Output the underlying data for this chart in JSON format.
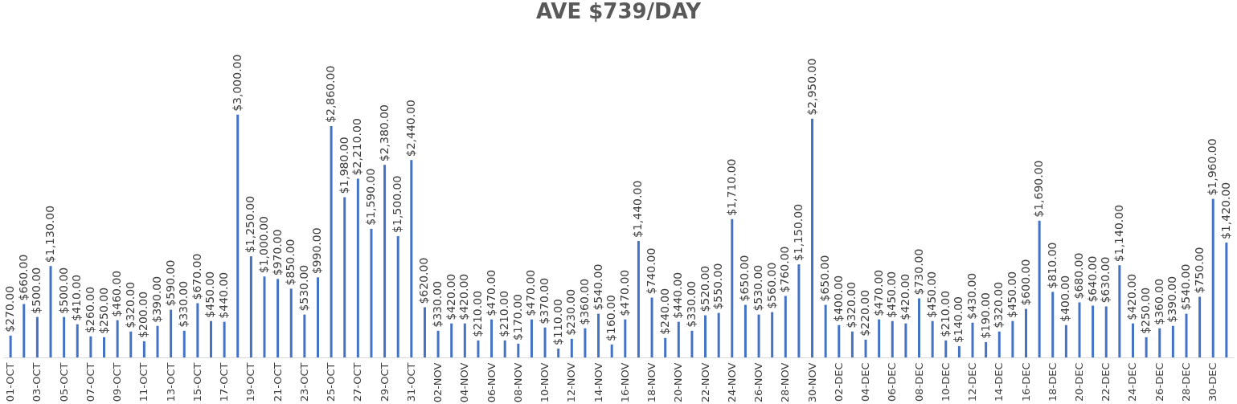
{
  "chart_data": {
    "type": "bar",
    "title": "AVE $739/DAY",
    "color": "#4472c4",
    "categories": [
      "01-OCT",
      null,
      "03-OCT",
      null,
      "05-OCT",
      null,
      "07-OCT",
      null,
      "09-OCT",
      null,
      "11-OCT",
      null,
      "13-OCT",
      null,
      "15-OCT",
      null,
      "17-OCT",
      null,
      "19-OCT",
      null,
      "21-OCT",
      null,
      "23-OCT",
      null,
      "25-OCT",
      null,
      "27-OCT",
      null,
      "29-OCT",
      null,
      "31-OCT",
      null,
      "02-NOV",
      null,
      "04-NOV",
      null,
      "06-NOV",
      null,
      "08-NOV",
      null,
      "10-NOV",
      null,
      "12-NOV",
      null,
      "14-NOV",
      null,
      "16-NOV",
      null,
      "18-NOV",
      null,
      "20-NOV",
      null,
      "22-NOV",
      null,
      "24-NOV",
      null,
      "26-NOV",
      null,
      "28-NOV",
      null,
      "30-NOV",
      null,
      "02-DEC",
      null,
      "04-DEC",
      null,
      "06-DEC",
      null,
      "08-DEC",
      null,
      "10-DEC",
      null,
      "12-DEC",
      null,
      "14-DEC",
      null,
      "16-DEC",
      null,
      "18-DEC",
      null,
      "20-DEC",
      null,
      "22-DEC",
      null,
      "24-DEC",
      null,
      "26-DEC",
      null,
      "28-DEC",
      null,
      "30-DEC",
      null
    ],
    "values": [
      270,
      660,
      500,
      1130,
      500,
      410,
      260,
      250,
      460,
      320,
      200,
      390,
      590,
      330,
      670,
      450,
      440,
      3000,
      1250,
      1000,
      970,
      850,
      530,
      990,
      2860,
      1980,
      2210,
      1590,
      2380,
      1500,
      2440,
      620,
      330,
      420,
      420,
      210,
      470,
      210,
      170,
      470,
      370,
      110,
      230,
      360,
      540,
      160,
      470,
      1440,
      740,
      240,
      440,
      330,
      520,
      550,
      1710,
      650,
      530,
      560,
      760,
      1150,
      2950,
      650,
      400,
      320,
      220,
      470,
      450,
      420,
      730,
      450,
      210,
      140,
      430,
      190,
      320,
      450,
      600,
      1690,
      810,
      400,
      680,
      640,
      630,
      1140,
      420,
      250,
      360,
      390,
      540,
      750,
      1960,
      1420
    ],
    "value_labels": [
      "$270.00",
      "$660.00",
      "$500.00",
      "$1,130.00",
      "$500.00",
      "$410.00",
      "$260.00",
      "$250.00",
      "$460.00",
      "$320.00",
      "$200.00",
      "$390.00",
      "$590.00",
      "$330.00",
      "$670.00",
      "$450.00",
      "$440.00",
      "$3,000.00",
      "$1,250.00",
      "$1,000.00",
      "$970.00",
      "$850.00",
      "$530.00",
      "$990.00",
      "$2,860.00",
      "$1,980.00",
      "$2,210.00",
      "$1,590.00",
      "$2,380.00",
      "$1,500.00",
      "$2,440.00",
      "$620.00",
      "$330.00",
      "$420.00",
      "$420.00",
      "$210.00",
      "$470.00",
      "$210.00",
      "$170.00",
      "$470.00",
      "$370.00",
      "$110.00",
      "$230.00",
      "$360.00",
      "$540.00",
      "$160.00",
      "$470.00",
      "$1,440.00",
      "$740.00",
      "$240.00",
      "$440.00",
      "$330.00",
      "$520.00",
      "$550.00",
      "$1,710.00",
      "$650.00",
      "$530.00",
      "$560.00",
      "$760.00",
      "$1,150.00",
      "$2,950.00",
      "$650.00",
      "$400.00",
      "$320.00",
      "$220.00",
      "$470.00",
      "$450.00",
      "$420.00",
      "$730.00",
      "$450.00",
      "$210.00",
      "$140.00",
      "$430.00",
      "$190.00",
      "$320.00",
      "$450.00",
      "$600.00",
      "$1,690.00",
      "$810.00",
      "$400.00",
      "$680.00",
      "$640.00",
      "$630.00",
      "$1,140.00",
      "$420.00",
      "$250.00",
      "$360.00",
      "$390.00",
      "$540.00",
      "$750.00",
      "$1,960.00",
      "$1,420.00"
    ]
  }
}
